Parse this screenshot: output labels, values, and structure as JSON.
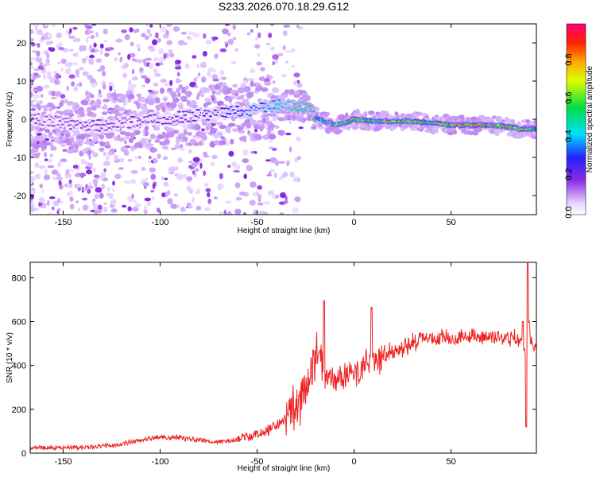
{
  "title": "S233.2026.070.18.29.G12",
  "chart_data": [
    {
      "type": "heatmap",
      "xlabel": "Height of straight line (km)",
      "ylabel": "Frequency (Hz)",
      "xlim": [
        -167,
        94
      ],
      "ylim": [
        -25,
        25
      ],
      "xticks": [
        -150,
        -100,
        -50,
        0,
        50
      ],
      "yticks": [
        -20,
        -10,
        0,
        10,
        20
      ],
      "colorbar": {
        "label": "Normalized spectral amplitude",
        "range": [
          0,
          1
        ],
        "ticks": [
          0.0,
          0.2,
          0.4,
          0.6,
          0.8
        ],
        "tick_labels": [
          "0.0",
          "0.2",
          "0.4",
          "0.6",
          "0.8"
        ]
      },
      "ridge": {
        "x": [
          -160,
          -140,
          -120,
          -100,
          -80,
          -60,
          -45,
          -35,
          -25,
          -18,
          -10,
          -5,
          0,
          10,
          20,
          30,
          40,
          50,
          60,
          70,
          80,
          85,
          90,
          94
        ],
        "frequency": [
          0,
          -2,
          -1,
          0,
          1,
          2,
          3,
          4,
          3,
          0,
          -1.5,
          -1,
          0,
          -0.5,
          -0.5,
          -0.5,
          -1,
          -1.5,
          -1.5,
          -1.5,
          -2,
          -2.5,
          -2.5,
          -2.5
        ],
        "amplitude": [
          0.15,
          0.18,
          0.2,
          0.2,
          0.22,
          0.3,
          0.4,
          0.45,
          0.5,
          0.55,
          0.6,
          0.75,
          0.85,
          0.7,
          0.8,
          0.8,
          0.7,
          0.9,
          0.95,
          0.9,
          0.8,
          0.85,
          0.75,
          0.6
        ]
      }
    },
    {
      "type": "line",
      "xlabel": "Height of straight line (km)",
      "ylabel": "SNR (10 * v/v)",
      "xlim": [
        -167,
        94
      ],
      "ylim": [
        0,
        870
      ],
      "xticks": [
        -150,
        -100,
        -50,
        0,
        50
      ],
      "yticks": [
        0,
        200,
        400,
        600,
        800
      ],
      "color": "#ee2222",
      "x": [
        -167,
        -140,
        -120,
        -110,
        -100,
        -90,
        -80,
        -70,
        -60,
        -50,
        -40,
        -35,
        -30,
        -25,
        -22,
        -20,
        -18,
        -15,
        -10,
        0,
        10,
        20,
        30,
        35,
        40,
        50,
        60,
        70,
        80,
        85,
        88,
        89,
        90,
        91,
        94
      ],
      "y": [
        25,
        25,
        40,
        60,
        75,
        70,
        60,
        50,
        60,
        85,
        125,
        160,
        210,
        300,
        380,
        430,
        480,
        330,
        320,
        370,
        420,
        460,
        505,
        520,
        525,
        530,
        530,
        530,
        525,
        525,
        490,
        250,
        600,
        520,
        470
      ],
      "spikes": [
        {
          "x": -15.5,
          "y": 695
        },
        {
          "x": 9,
          "y": 665
        },
        {
          "x": 89.5,
          "y": 865
        },
        {
          "x": 88.8,
          "y": 120
        },
        {
          "x": 87,
          "y": 600
        }
      ]
    }
  ]
}
